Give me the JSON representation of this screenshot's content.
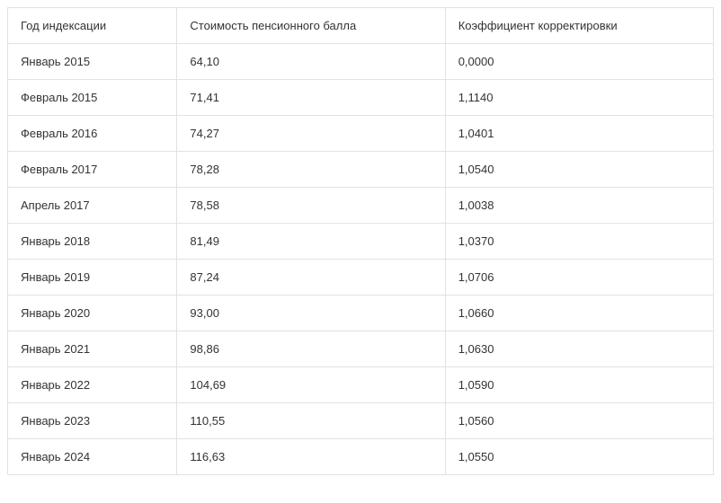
{
  "table": {
    "type": "table",
    "background_color": "#ffffff",
    "border_color": "#e2e2e2",
    "text_color": "#333333",
    "font_size": 13,
    "cell_padding": "12px 14px",
    "columns": [
      {
        "key": "year",
        "header": "Год индексации",
        "width": "24%",
        "align": "left"
      },
      {
        "key": "cost",
        "header": "Стоимость пенсионного балла",
        "width": "38%",
        "align": "left"
      },
      {
        "key": "coef",
        "header": "Коэффициент корректировки",
        "width": "38%",
        "align": "left"
      }
    ],
    "rows": [
      {
        "year": "Январь 2015",
        "cost": "64,10",
        "coef": "0,0000"
      },
      {
        "year": "Февраль 2015",
        "cost": "71,41",
        "coef": "1,1140"
      },
      {
        "year": "Февраль 2016",
        "cost": "74,27",
        "coef": "1,0401"
      },
      {
        "year": "Февраль 2017",
        "cost": "78,28",
        "coef": "1,0540"
      },
      {
        "year": "Апрель 2017",
        "cost": "78,58",
        "coef": "1,0038"
      },
      {
        "year": "Январь 2018",
        "cost": "81,49",
        "coef": "1,0370"
      },
      {
        "year": "Январь 2019",
        "cost": "87,24",
        "coef": "1,0706"
      },
      {
        "year": "Январь 2020",
        "cost": "93,00",
        "coef": "1,0660"
      },
      {
        "year": "Январь 2021",
        "cost": "98,86",
        "coef": "1,0630"
      },
      {
        "year": "Январь 2022",
        "cost": "104,69",
        "coef": "1,0590"
      },
      {
        "year": "Январь 2023",
        "cost": "110,55",
        "coef": "1,0560"
      },
      {
        "year": "Январь 2024",
        "cost": "116,63",
        "coef": "1,0550"
      }
    ]
  }
}
